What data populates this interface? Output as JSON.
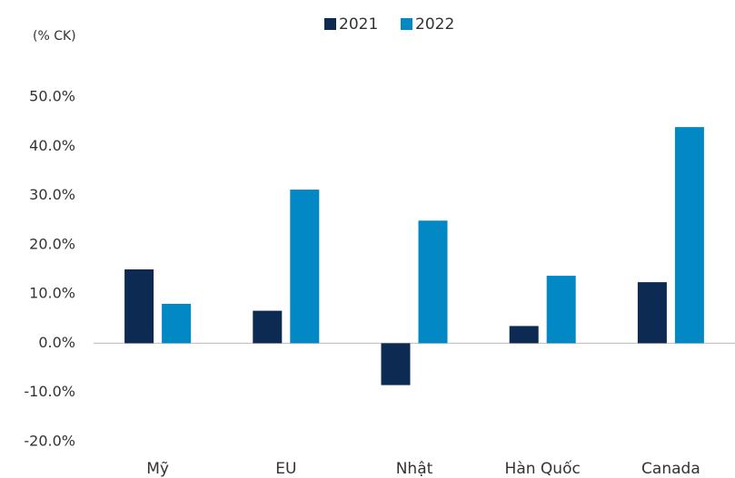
{
  "chart_data": {
    "type": "bar",
    "y_unit_label": "(% CK)",
    "categories": [
      "Mỹ",
      "EU",
      "Nhật",
      "Hàn Quốc",
      "Canada"
    ],
    "series": [
      {
        "name": "2021",
        "color": "#0d2b52",
        "values": [
          15,
          6.6,
          -8.5,
          3.5,
          12.4
        ]
      },
      {
        "name": "2022",
        "color": "#0288c4",
        "values": [
          8,
          31.2,
          24.9,
          13.7,
          43.9
        ]
      }
    ],
    "ylim": [
      -20,
      50
    ],
    "yticks": [
      {
        "value": -20,
        "label": "-20.0%"
      },
      {
        "value": -10,
        "label": "-10.0%"
      },
      {
        "value": 0,
        "label": "0.0%"
      },
      {
        "value": 10,
        "label": "10.0%"
      },
      {
        "value": 20,
        "label": "20.0%"
      },
      {
        "value": 30,
        "label": "30.0%"
      },
      {
        "value": 40,
        "label": "40.0%"
      },
      {
        "value": 50,
        "label": "50.0%"
      }
    ],
    "legend": "top"
  }
}
